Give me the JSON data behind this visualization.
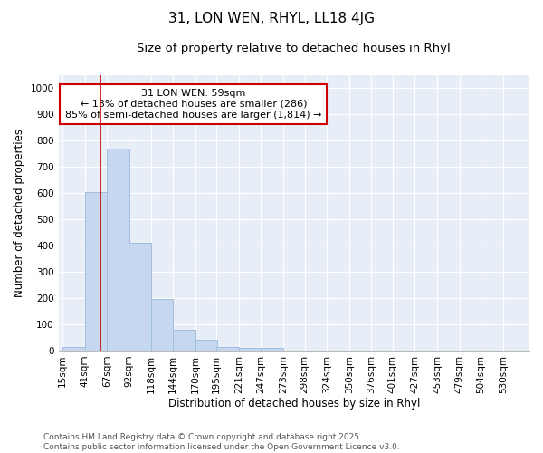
{
  "title": "31, LON WEN, RHYL, LL18 4JG",
  "subtitle": "Size of property relative to detached houses in Rhyl",
  "xlabel": "Distribution of detached houses by size in Rhyl",
  "ylabel": "Number of detached properties",
  "bin_labels": [
    "15sqm",
    "41sqm",
    "67sqm",
    "92sqm",
    "118sqm",
    "144sqm",
    "170sqm",
    "195sqm",
    "221sqm",
    "247sqm",
    "273sqm",
    "298sqm",
    "324sqm",
    "350sqm",
    "376sqm",
    "401sqm",
    "427sqm",
    "453sqm",
    "479sqm",
    "504sqm",
    "530sqm"
  ],
  "bin_edges": [
    15,
    41,
    67,
    92,
    118,
    144,
    170,
    195,
    221,
    247,
    273,
    298,
    324,
    350,
    376,
    401,
    427,
    453,
    479,
    504,
    530
  ],
  "bar_heights": [
    15,
    605,
    770,
    410,
    195,
    78,
    40,
    15,
    10,
    10,
    0,
    0,
    0,
    0,
    0,
    0,
    0,
    0,
    0,
    0,
    0
  ],
  "bar_color": "#c5d8f0",
  "bar_edge_color": "#a0bedd",
  "subject_size": 59,
  "subject_label": "31 LON WEN: 59sqm",
  "annotation_line1": "← 13% of detached houses are smaller (286)",
  "annotation_line2": "85% of semi-detached houses are larger (1,814) →",
  "red_line_color": "#cc0000",
  "annotation_box_color": "#cc0000",
  "bg_color": "#e8eef8",
  "ylim": [
    0,
    1050
  ],
  "yticks": [
    0,
    100,
    200,
    300,
    400,
    500,
    600,
    700,
    800,
    900,
    1000
  ],
  "footer_line1": "Contains HM Land Registry data © Crown copyright and database right 2025.",
  "footer_line2": "Contains public sector information licensed under the Open Government Licence v3.0.",
  "title_fontsize": 11,
  "subtitle_fontsize": 9.5,
  "axis_label_fontsize": 8.5,
  "tick_fontsize": 7.5,
  "annotation_fontsize": 8,
  "footer_fontsize": 6.5
}
